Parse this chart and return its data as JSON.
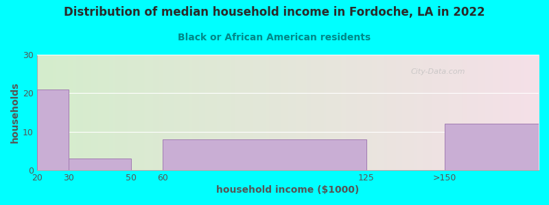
{
  "title": "Distribution of median household income in Fordoche, LA in 2022",
  "subtitle": "Black or African American residents",
  "xlabel": "household income ($1000)",
  "ylabel": "households",
  "background_color": "#00FFFF",
  "plot_bg_gradient_left": "#d4edcc",
  "plot_bg_gradient_right": "#f5e0e8",
  "bar_color": "#c9aed4",
  "bar_edgecolor": "#a07ab0",
  "categories": [
    "20",
    "30",
    "50",
    "60",
    "125",
    ">150"
  ],
  "x_positions": [
    20,
    30,
    50,
    60,
    125,
    150
  ],
  "x_widths": [
    10,
    20,
    10,
    65,
    25,
    30
  ],
  "values": [
    21,
    3,
    0,
    8,
    0,
    12
  ],
  "ylim": [
    0,
    30
  ],
  "yticks": [
    0,
    10,
    20,
    30
  ],
  "xlim": [
    20,
    180
  ],
  "xticks": [
    20,
    30,
    50,
    60,
    125,
    150
  ],
  "xticklabels": [
    "20",
    "30",
    "50",
    "60",
    "125",
    ">150"
  ],
  "title_fontsize": 12,
  "subtitle_fontsize": 10,
  "axis_label_fontsize": 10,
  "tick_fontsize": 9,
  "title_color": "#2a2a2a",
  "subtitle_color": "#008888",
  "axis_label_color": "#555555",
  "tick_color": "#555555",
  "watermark": "City-Data.com"
}
